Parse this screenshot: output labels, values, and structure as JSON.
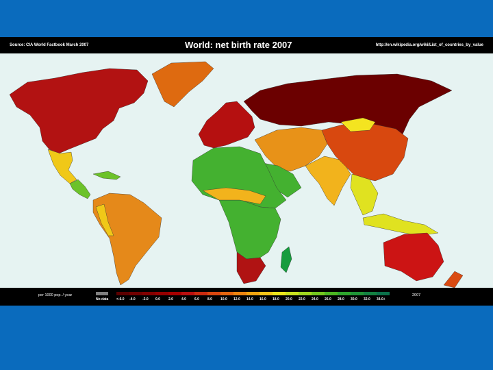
{
  "header": {
    "source": "Source: CIA World Factbook March 2007",
    "title": "World: net birth rate 2007",
    "url": "http://en.wikipedia.org/wiki/List_of_countries_by_value"
  },
  "footer": {
    "unit": "per 1000 pop. / year",
    "year": "2007"
  },
  "legend": {
    "nodata_label": "No data",
    "nodata_color": "#808080",
    "labels": [
      "<-6.0",
      "-4.0",
      "-2.0",
      "0.0",
      "2.0",
      "4.0",
      "6.0",
      "8.0",
      "10.0",
      "12.0",
      "14.0",
      "16.0",
      "18.0",
      "20.0",
      "22.0",
      "24.0",
      "26.0",
      "28.0",
      "30.0",
      "32.0",
      "34.0+"
    ],
    "colors": [
      "#5c0000",
      "#700000",
      "#820000",
      "#950000",
      "#a60000",
      "#b80f0f",
      "#c82a0f",
      "#d8460f",
      "#e2650f",
      "#ea8410",
      "#f0a410",
      "#f3c418",
      "#ece51c",
      "#c8e020",
      "#9fd51f",
      "#74c61f",
      "#4cb622",
      "#2ea52d",
      "#1f9337",
      "#138141",
      "#0a704a"
    ]
  },
  "map_regions": {
    "oceans": "#e6f3f2",
    "north_america": "#b21212",
    "greenland": "#de6a10",
    "mexico": "#f0c818",
    "central_america": "#6cc22a",
    "south_america": "#e5891a",
    "europe": "#b51010",
    "russia": "#6b0000",
    "middle_east": "#e89218",
    "africa": "#44b130",
    "south_africa": "#b01313",
    "asia_south": "#f2b31c",
    "china": "#d8480f",
    "mongolia": "#f4e420",
    "southeast_asia": "#e0e220",
    "australia": "#cc1414",
    "new_zealand": "#da4b12",
    "madagascar": "#179c3e"
  }
}
